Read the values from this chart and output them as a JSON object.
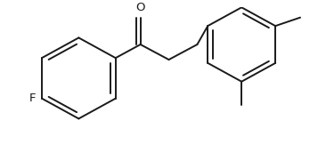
{
  "background": "#ffffff",
  "line_color": "#1a1a1a",
  "line_width": 1.4,
  "font_size": 9.5,
  "fig_w": 3.57,
  "fig_h": 1.72,
  "dpi": 100
}
